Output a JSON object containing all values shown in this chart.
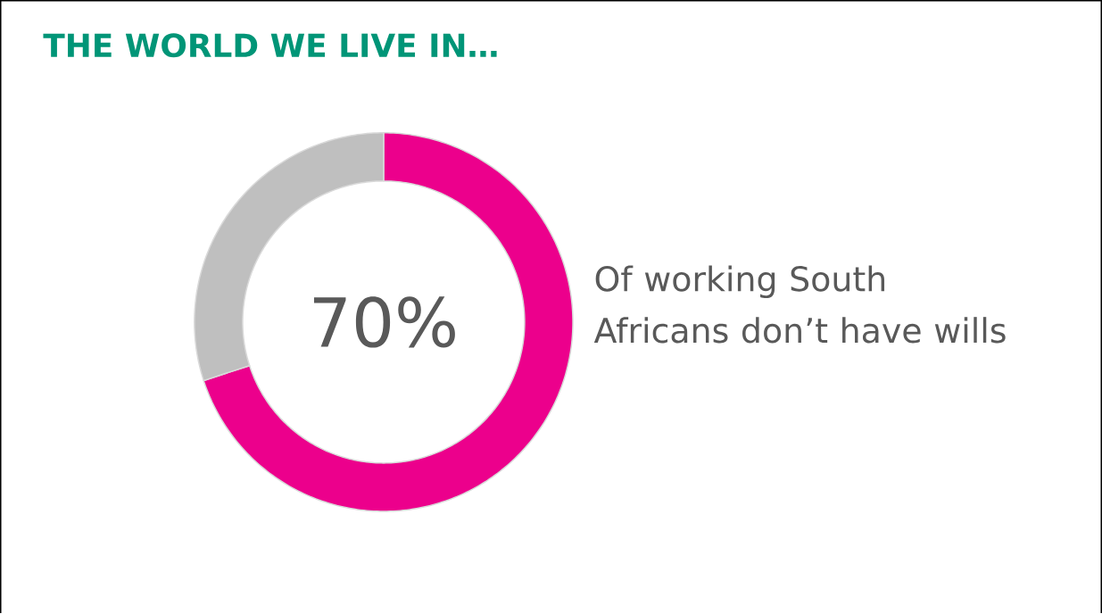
{
  "chart_data": {
    "type": "donut",
    "title": "THE WORLD WE LIVE IN…",
    "categories": [
      null,
      null
    ],
    "values": [
      70,
      30
    ],
    "colors": [
      "#ec008c",
      "#bfbfbf"
    ],
    "value_labels": [
      "70%",
      null
    ],
    "annotations": [
      "Of working South Africans don’t have wills"
    ]
  }
}
